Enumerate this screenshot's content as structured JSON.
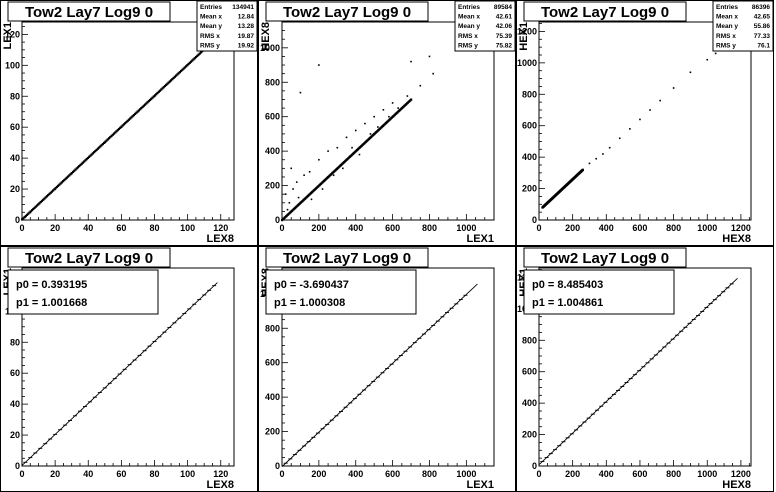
{
  "chart_data": [
    {
      "type": "scatter",
      "title": "Tow2 Lay7 Log9 0",
      "xlabel": "LEX8",
      "ylabel": "LEX1",
      "xlim": [
        0,
        128
      ],
      "ylim": [
        0,
        128
      ],
      "xticks": [
        0,
        20,
        40,
        60,
        80,
        100,
        120
      ],
      "yticks": [
        0,
        20,
        40,
        60,
        80,
        100,
        120
      ],
      "stats": [
        {
          "label": "Entries",
          "value": "134941"
        },
        {
          "label": "Mean x",
          "value": "12.84"
        },
        {
          "label": "Mean y",
          "value": "13.28"
        },
        {
          "label": "RMS x",
          "value": "19.87"
        },
        {
          "label": "RMS y",
          "value": "19.92"
        }
      ],
      "trend": {
        "x0": 0,
        "x1": 120,
        "slope": 1.0,
        "intercept": 0.4
      },
      "points": [
        [
          2,
          2
        ],
        [
          5,
          5
        ],
        [
          10,
          10
        ],
        [
          20,
          20
        ],
        [
          30,
          30
        ],
        [
          40,
          40
        ],
        [
          50,
          50
        ],
        [
          60,
          60
        ],
        [
          70,
          70
        ],
        [
          80,
          80
        ],
        [
          90,
          90
        ],
        [
          100,
          100
        ],
        [
          110,
          110
        ],
        [
          115,
          115
        ]
      ]
    },
    {
      "type": "scatter",
      "title": "Tow2 Lay7 Log9 0",
      "xlabel": "LEX1",
      "ylabel": "HEX8",
      "xlim": [
        0,
        1150
      ],
      "ylim": [
        0,
        1150
      ],
      "xticks": [
        0,
        200,
        400,
        600,
        800,
        1000
      ],
      "yticks": [
        0,
        200,
        400,
        600,
        800,
        1000
      ],
      "stats": [
        {
          "label": "Entries",
          "value": "89584"
        },
        {
          "label": "Mean x",
          "value": "42.61"
        },
        {
          "label": "Mean y",
          "value": "42.06"
        },
        {
          "label": "RMS x",
          "value": "75.39"
        },
        {
          "label": "RMS y",
          "value": "75.82"
        }
      ],
      "trend": {
        "x0": 0,
        "x1": 700,
        "slope": 1.0,
        "intercept": 0
      },
      "points": [
        [
          20,
          20
        ],
        [
          50,
          50
        ],
        [
          100,
          100
        ],
        [
          150,
          150
        ],
        [
          200,
          200
        ],
        [
          250,
          250
        ],
        [
          300,
          300
        ],
        [
          350,
          350
        ],
        [
          400,
          400
        ],
        [
          450,
          450
        ],
        [
          500,
          500
        ],
        [
          550,
          550
        ],
        [
          600,
          600
        ],
        [
          650,
          650
        ],
        [
          700,
          700
        ],
        [
          50,
          300
        ],
        [
          80,
          220
        ],
        [
          120,
          260
        ],
        [
          60,
          180
        ],
        [
          150,
          280
        ],
        [
          200,
          350
        ],
        [
          250,
          400
        ],
        [
          300,
          420
        ],
        [
          350,
          480
        ],
        [
          400,
          520
        ],
        [
          450,
          560
        ],
        [
          500,
          600
        ],
        [
          550,
          640
        ],
        [
          600,
          680
        ],
        [
          200,
          900
        ],
        [
          100,
          740
        ],
        [
          700,
          920
        ],
        [
          800,
          950
        ],
        [
          20,
          150
        ],
        [
          40,
          100
        ],
        [
          30,
          60
        ],
        [
          90,
          130
        ],
        [
          160,
          120
        ],
        [
          220,
          180
        ],
        [
          280,
          260
        ],
        [
          330,
          300
        ],
        [
          380,
          420
        ],
        [
          420,
          380
        ],
        [
          480,
          500
        ],
        [
          520,
          540
        ],
        [
          580,
          600
        ],
        [
          630,
          650
        ],
        [
          680,
          720
        ],
        [
          750,
          780
        ],
        [
          820,
          850
        ]
      ]
    },
    {
      "type": "scatter",
      "title": "Tow2 Lay7 Log9 0",
      "xlabel": "HEX8",
      "ylabel": "HEX1",
      "xlim": [
        0,
        1260
      ],
      "ylim": [
        0,
        1260
      ],
      "xticks": [
        0,
        200,
        400,
        600,
        800,
        1000,
        1200
      ],
      "yticks": [
        0,
        200,
        400,
        600,
        800,
        1000,
        1200
      ],
      "stats": [
        {
          "label": "Entries",
          "value": "86396"
        },
        {
          "label": "Mean x",
          "value": "42.65"
        },
        {
          "label": "Mean y",
          "value": "55.86"
        },
        {
          "label": "RMS x",
          "value": "77.33"
        },
        {
          "label": "RMS y",
          "value": "76.1"
        }
      ],
      "trend": {
        "x0": 20,
        "x1": 260,
        "slope": 1.0,
        "intercept": 60
      },
      "points": [
        [
          20,
          80
        ],
        [
          40,
          100
        ],
        [
          60,
          120
        ],
        [
          80,
          140
        ],
        [
          100,
          160
        ],
        [
          120,
          180
        ],
        [
          140,
          200
        ],
        [
          160,
          220
        ],
        [
          180,
          240
        ],
        [
          200,
          260
        ],
        [
          220,
          280
        ],
        [
          240,
          300
        ],
        [
          260,
          320
        ],
        [
          300,
          360
        ],
        [
          340,
          390
        ],
        [
          380,
          420
        ],
        [
          420,
          460
        ],
        [
          480,
          520
        ],
        [
          540,
          580
        ],
        [
          600,
          640
        ],
        [
          660,
          700
        ],
        [
          720,
          760
        ],
        [
          800,
          840
        ],
        [
          900,
          940
        ],
        [
          1000,
          1020
        ],
        [
          1050,
          1060
        ]
      ]
    },
    {
      "type": "line",
      "title": "Tow2 Lay7 Log9 0",
      "xlabel": "LEX8",
      "ylabel": "LEX1",
      "xlim": [
        0,
        128
      ],
      "ylim": [
        0,
        128
      ],
      "xticks": [
        0,
        20,
        40,
        60,
        80,
        100,
        120
      ],
      "yticks": [
        0,
        20,
        40,
        60,
        80,
        100,
        120
      ],
      "fit": [
        {
          "label": "p0 = 0.393195"
        },
        {
          "label": "p1 = 1.001668"
        }
      ],
      "line": {
        "x0": 0,
        "x1": 118,
        "p0": 0.393195,
        "p1": 1.001668
      },
      "profile": {
        "x0": 2,
        "x1": 118,
        "step": 3
      }
    },
    {
      "type": "line",
      "title": "Tow2 Lay7 Log9 0",
      "xlabel": "LEX1",
      "ylabel": "HEX8",
      "xlim": [
        0,
        1150
      ],
      "ylim": [
        0,
        1150
      ],
      "xticks": [
        0,
        200,
        400,
        600,
        800,
        1000
      ],
      "yticks": [
        0,
        200,
        400,
        600,
        800,
        1000
      ],
      "fit": [
        {
          "label": "p0 = -3.690437"
        },
        {
          "label": "p1 = 1.000308"
        }
      ],
      "line": {
        "x0": 0,
        "x1": 1060,
        "p0": -3.690437,
        "p1": 1.000308
      },
      "profile": {
        "x0": 20,
        "x1": 1000,
        "step": 25
      }
    },
    {
      "type": "line",
      "title": "Tow2 Lay7 Log9 0",
      "xlabel": "HEX8",
      "ylabel": "HEX1",
      "xlim": [
        0,
        1260
      ],
      "ylim": [
        0,
        1260
      ],
      "xticks": [
        0,
        200,
        400,
        600,
        800,
        1000,
        1200
      ],
      "yticks": [
        0,
        200,
        400,
        600,
        800,
        1000,
        1200
      ],
      "fit": [
        {
          "label": "p0 = 8.485403"
        },
        {
          "label": "p1 = 1.004861"
        }
      ],
      "line": {
        "x0": 0,
        "x1": 1180,
        "p0": 8.485403,
        "p1": 1.004861
      },
      "profile": {
        "x0": 20,
        "x1": 1160,
        "step": 25
      }
    }
  ]
}
